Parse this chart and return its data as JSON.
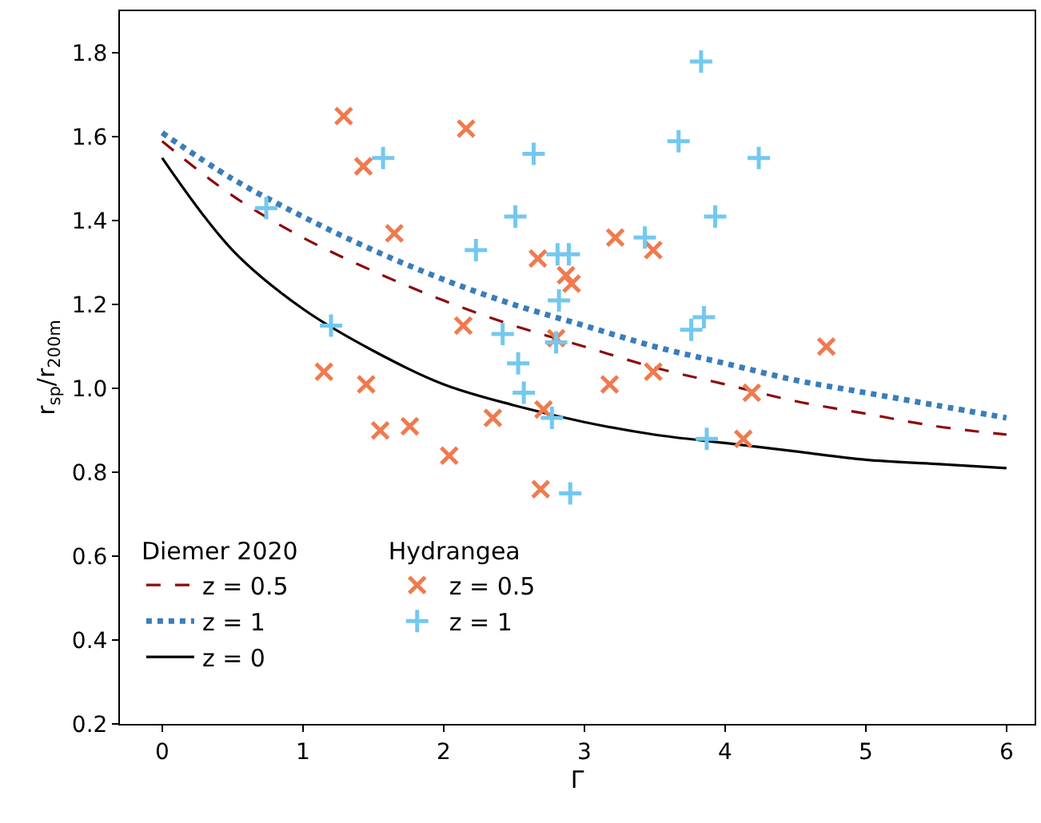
{
  "chart_data": {
    "type": "scatter",
    "xlabel": "Γ",
    "ylabel": "r$_{sp}$/r$_{200m}$",
    "xlim": [
      -0.3,
      6.2
    ],
    "ylim": [
      0.2,
      1.9
    ],
    "xticks": [
      0,
      1,
      2,
      3,
      4,
      5,
      6
    ],
    "yticks": [
      0.2,
      0.4,
      0.6,
      0.8,
      {
        "value": 1,
        "label": "1.0"
      },
      1.2,
      1.4,
      1.6,
      1.8
    ],
    "legend": "bottom left",
    "legend_title": [
      "Diemer 2020",
      "Hydrangea"
    ],
    "series": [
      {
        "name": "z = 0.5",
        "type": "line",
        "color": "#8b0a0a",
        "line_style": "dashed",
        "marker": "none",
        "x": [
          0,
          0.5,
          1,
          1.5,
          2,
          2.5,
          3,
          3.5,
          4,
          4.5,
          5,
          5.5,
          6
        ],
        "values": [
          1.59,
          1.46,
          1.36,
          1.28,
          1.21,
          1.15,
          1.1,
          1.05,
          1.01,
          0.97,
          0.94,
          0.91,
          0.89
        ]
      },
      {
        "name": "z = 1",
        "type": "line",
        "color": "#3a7dbb",
        "line_style": "dotted",
        "marker": "none",
        "x": [
          0,
          0.5,
          1,
          1.5,
          2,
          2.5,
          3,
          3.5,
          4,
          4.5,
          5,
          5.5,
          6
        ],
        "values": [
          1.61,
          1.5,
          1.41,
          1.33,
          1.26,
          1.2,
          1.15,
          1.1,
          1.06,
          1.02,
          0.99,
          0.96,
          0.93
        ]
      },
      {
        "name": "z = 0",
        "type": "line",
        "color": "#000000",
        "line_style": "solid",
        "marker": "none",
        "x": [
          0,
          0.5,
          1,
          1.5,
          2,
          2.5,
          3,
          3.5,
          4,
          4.5,
          5,
          5.5,
          6
        ],
        "values": [
          1.55,
          1.33,
          1.19,
          1.09,
          1.01,
          0.96,
          0.92,
          0.89,
          0.87,
          0.85,
          0.83,
          0.82,
          0.81
        ]
      },
      {
        "name": "z = 0.5",
        "color": "#f07a4e",
        "marker": "x",
        "x": [
          1.29,
          1.43,
          1.65,
          2.16,
          2.14,
          1.15,
          1.45,
          1.55,
          1.76,
          2.04,
          2.35,
          2.67,
          2.87,
          2.91,
          3.22,
          3.49,
          2.8,
          3.49,
          3.18,
          4.19,
          4.72,
          2.71,
          4.13,
          2.69
        ],
        "values": [
          1.65,
          1.53,
          1.37,
          1.62,
          1.15,
          1.04,
          1.01,
          0.9,
          0.91,
          0.84,
          0.93,
          1.31,
          1.27,
          1.25,
          1.36,
          1.33,
          1.12,
          1.04,
          1.01,
          0.99,
          1.1,
          0.95,
          0.88,
          0.76
        ]
      },
      {
        "name": "z = 1",
        "color": "#73c8ef",
        "marker": "cross",
        "x": [
          3.83,
          3.67,
          4.24,
          2.64,
          2.51,
          2.23,
          2.81,
          2.89,
          3.43,
          3.93,
          2.82,
          3.85,
          3.76,
          2.42,
          2.8,
          2.53,
          2.57,
          2.77,
          3.87,
          2.9,
          1.57,
          0.74,
          1.2
        ],
        "values": [
          1.78,
          1.59,
          1.55,
          1.56,
          1.41,
          1.33,
          1.32,
          1.32,
          1.36,
          1.41,
          1.21,
          1.17,
          1.14,
          1.13,
          1.11,
          1.06,
          0.99,
          0.93,
          0.88,
          0.75,
          1.55,
          1.43,
          1.15
        ]
      }
    ]
  }
}
